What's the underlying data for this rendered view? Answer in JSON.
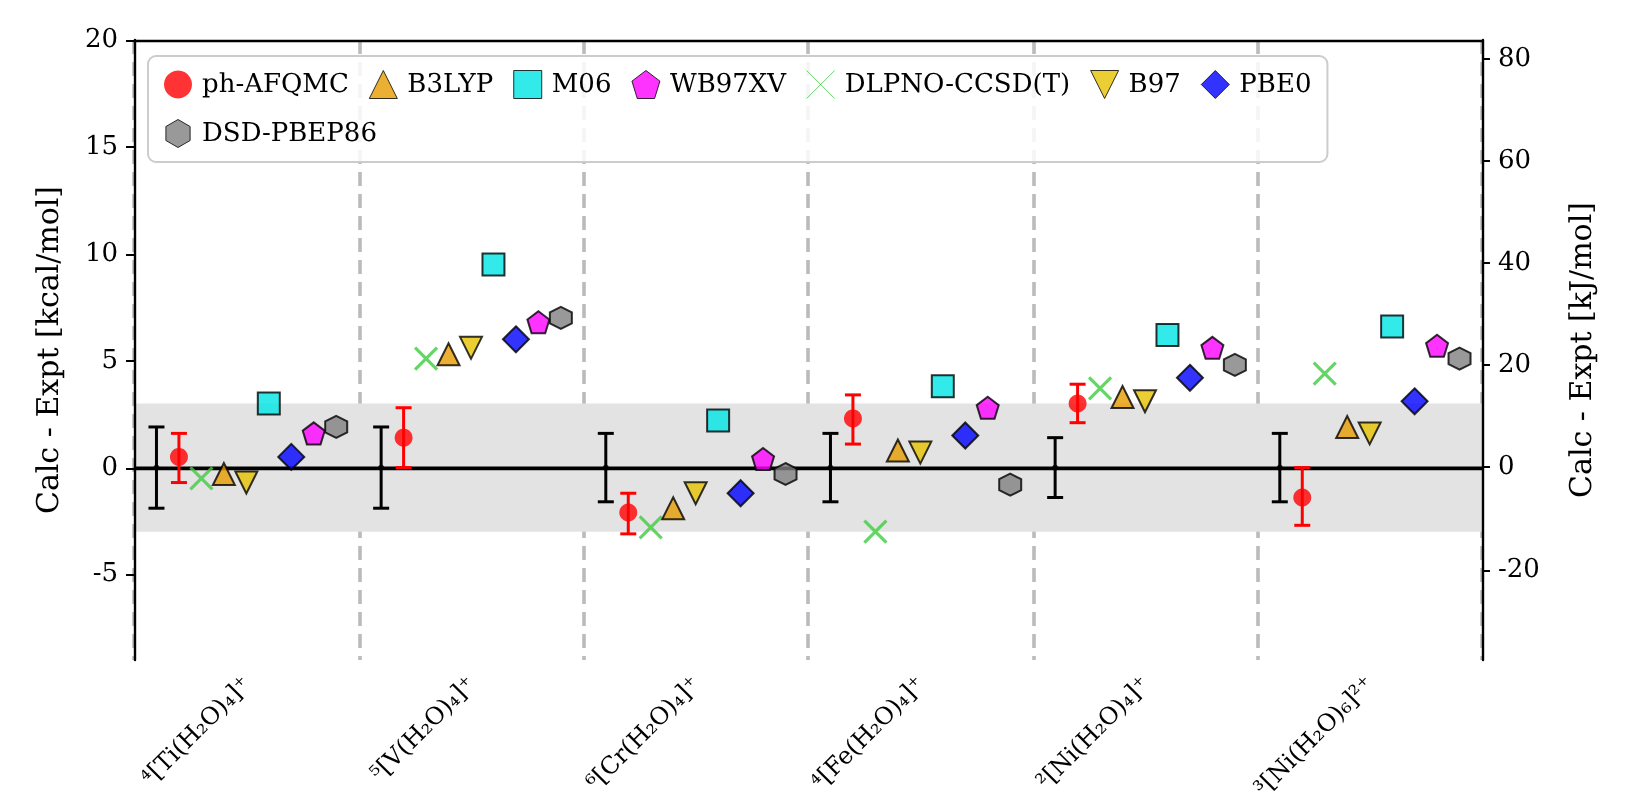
{
  "chart_data": {
    "type": "scatter",
    "ylabel": "Calc - Expt [kcal/mol]",
    "y2label": "Calc - Expt [kJ/mol]",
    "categories": [
      "⁴[Ti(H₂O)₄]⁺",
      "⁵[V(H₂O)₄]⁺",
      "⁶[Cr(H₂O)₄]⁺",
      "⁴[Fe(H₂O)₄]⁺",
      "²[Ni(H₂O)₄]⁺",
      "³[Ni(H₂O)₆]²⁺"
    ],
    "series": [
      {
        "color": "#000000",
        "values": [
          0,
          0,
          0,
          0,
          0,
          0
        ],
        "errors": [
          1.9,
          1.9,
          1.6,
          1.6,
          1.4,
          1.6
        ]
      },
      {
        "name": "ph-AFQMC",
        "color": "#ff0000",
        "marker": "circle",
        "values": [
          0.5,
          1.4,
          -2.1,
          2.3,
          3.0,
          -1.4
        ],
        "errors": [
          [
            -0.7,
            1.6
          ],
          [
            0,
            2.8
          ],
          [
            -3.1,
            -1.2
          ],
          [
            1.1,
            3.4
          ],
          [
            2.1,
            3.9
          ],
          [
            0,
            -2.7
          ]
        ]
      },
      {
        "name": "DLPNO-CCSD(T)",
        "color": "#3fcc3f",
        "marker": "cross",
        "values": [
          -0.5,
          5.1,
          -2.8,
          -3.0,
          3.7,
          4.4
        ]
      },
      {
        "name": "B3LYP",
        "color": "#e69b00",
        "marker": "triangle",
        "values": [
          -0.3,
          5.3,
          -1.9,
          0.8,
          3.3,
          1.9
        ]
      },
      {
        "name": "B97",
        "color": "#e6c200",
        "marker": "triangle_down",
        "values": [
          -0.7,
          5.6,
          -1.2,
          0.7,
          3.1,
          1.6
        ]
      },
      {
        "name": "M06",
        "color": "#00e5e5",
        "marker": "square",
        "values": [
          3.0,
          9.5,
          2.2,
          3.8,
          6.2,
          6.6
        ]
      },
      {
        "name": "PBE0",
        "color": "#0000ff",
        "marker": "diamond",
        "values": [
          0.5,
          6.0,
          -1.2,
          1.5,
          4.2,
          3.1
        ]
      },
      {
        "name": "WB97XV",
        "color": "#ff00ff",
        "values": [
          1.6,
          6.8,
          0.4,
          2.8,
          5.6,
          5.7
        ]
      },
      {
        "name": "DSD-PBEP86",
        "color": "#808080",
        "values": [
          1.9,
          7.0,
          -0.3,
          -0.8,
          4.8,
          5.1
        ]
      }
    ],
    "ylim": [
      -9,
      20
    ],
    "yticks": [
      -5,
      0,
      5,
      10,
      15,
      20
    ],
    "y2lim": [
      -37.7,
      83.7
    ],
    "y2ticks": [
      -20,
      0,
      20,
      40,
      60,
      80
    ],
    "bands": [
      {
        "axis": "y",
        "from": -3,
        "to": 3,
        "color": "#e3e3e3"
      }
    ],
    "ref_lines": [
      {
        "axis": "y",
        "value": 0,
        "color": "#000000"
      }
    ],
    "grid": "x",
    "legend": "top left"
  }
}
